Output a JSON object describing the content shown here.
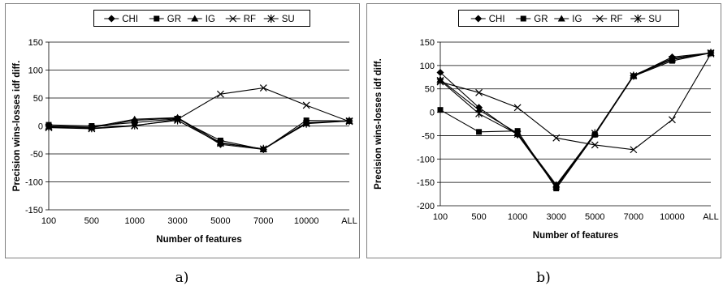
{
  "chart_data": [
    {
      "type": "line",
      "caption": "a)",
      "categories": [
        "100",
        "500",
        "1000",
        "3000",
        "5000",
        "7000",
        "10000",
        "ALL"
      ],
      "xlabel": "Number of features",
      "ylabel": "Precision wins-losses idf diff.",
      "ylim": [
        -150,
        150
      ],
      "yticks": [
        150,
        100,
        50,
        0,
        -50,
        -100,
        -150
      ],
      "grid": true,
      "legend_position": "top",
      "series": [
        {
          "name": "CHI",
          "marker": "diamond",
          "values": [
            0,
            -3,
            10,
            14,
            -33,
            -42,
            5,
            9
          ]
        },
        {
          "name": "GR",
          "marker": "square",
          "values": [
            2,
            0,
            6,
            13,
            -26,
            -42,
            10,
            9
          ]
        },
        {
          "name": "IG",
          "marker": "triangle",
          "values": [
            -1,
            -2,
            12,
            15,
            -30,
            -41,
            6,
            9
          ]
        },
        {
          "name": "RF",
          "marker": "x",
          "values": [
            -3,
            -5,
            0,
            12,
            57,
            68,
            37,
            8
          ]
        },
        {
          "name": "SU",
          "marker": "star",
          "values": [
            -2,
            -4,
            1,
            10,
            -31,
            -41,
            4,
            9
          ]
        }
      ]
    },
    {
      "type": "line",
      "caption": "b)",
      "categories": [
        "100",
        "500",
        "1000",
        "3000",
        "5000",
        "7000",
        "10000",
        "ALL"
      ],
      "xlabel": "Number of features",
      "ylabel": "Precision wins-losses idf diff.",
      "ylim": [
        -200,
        150
      ],
      "yticks": [
        150,
        100,
        50,
        0,
        -50,
        -100,
        -150,
        -200
      ],
      "grid": true,
      "legend_position": "top",
      "series": [
        {
          "name": "CHI",
          "marker": "diamond",
          "values": [
            85,
            10,
            -48,
            -160,
            -47,
            78,
            118,
            127
          ]
        },
        {
          "name": "GR",
          "marker": "square",
          "values": [
            5,
            -42,
            -40,
            -163,
            -48,
            77,
            110,
            127
          ]
        },
        {
          "name": "IG",
          "marker": "triangle",
          "values": [
            70,
            5,
            -45,
            -155,
            -46,
            79,
            115,
            127
          ]
        },
        {
          "name": "RF",
          "marker": "x",
          "values": [
            65,
            42,
            10,
            -55,
            -70,
            -80,
            -16,
            125
          ]
        },
        {
          "name": "SU",
          "marker": "star",
          "values": [
            68,
            -3,
            -47,
            -158,
            -45,
            78,
            113,
            127
          ]
        }
      ]
    }
  ],
  "colors": {
    "line": "#000000",
    "grid": "#000000",
    "frame": "#808080"
  }
}
